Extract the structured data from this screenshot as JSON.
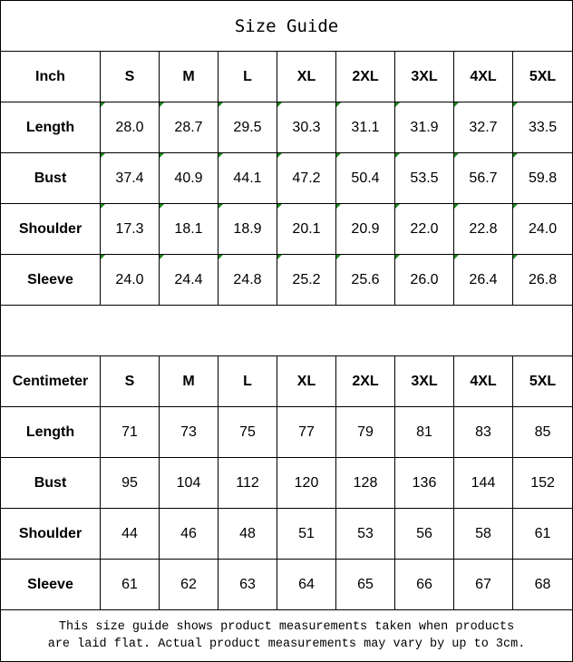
{
  "title": "Size Guide",
  "indicator_color": "#1a8a1a",
  "inch": {
    "unit_label": "Inch",
    "sizes": [
      "S",
      "M",
      "L",
      "XL",
      "2XL",
      "3XL",
      "4XL",
      "5XL"
    ],
    "rows": [
      {
        "label": "Length",
        "values": [
          "28.0",
          "28.7",
          "29.5",
          "30.3",
          "31.1",
          "31.9",
          "32.7",
          "33.5"
        ]
      },
      {
        "label": "Bust",
        "values": [
          "37.4",
          "40.9",
          "44.1",
          "47.2",
          "50.4",
          "53.5",
          "56.7",
          "59.8"
        ]
      },
      {
        "label": "Shoulder",
        "values": [
          "17.3",
          "18.1",
          "18.9",
          "20.1",
          "20.9",
          "22.0",
          "22.8",
          "24.0"
        ]
      },
      {
        "label": "Sleeve",
        "values": [
          "24.0",
          "24.4",
          "24.8",
          "25.2",
          "25.6",
          "26.0",
          "26.4",
          "26.8"
        ]
      }
    ]
  },
  "cm": {
    "unit_label": "Centimeter",
    "sizes": [
      "S",
      "M",
      "L",
      "XL",
      "2XL",
      "3XL",
      "4XL",
      "5XL"
    ],
    "rows": [
      {
        "label": "Length",
        "values": [
          "71",
          "73",
          "75",
          "77",
          "79",
          "81",
          "83",
          "85"
        ]
      },
      {
        "label": "Bust",
        "values": [
          "95",
          "104",
          "112",
          "120",
          "128",
          "136",
          "144",
          "152"
        ]
      },
      {
        "label": "Shoulder",
        "values": [
          "44",
          "46",
          "48",
          "51",
          "53",
          "56",
          "58",
          "61"
        ]
      },
      {
        "label": "Sleeve",
        "values": [
          "61",
          "62",
          "63",
          "64",
          "65",
          "66",
          "67",
          "68"
        ]
      }
    ]
  },
  "note_line1": "This size guide shows product measurements taken when products",
  "note_line2": "are laid flat. Actual product measurements may vary by up to 3cm."
}
